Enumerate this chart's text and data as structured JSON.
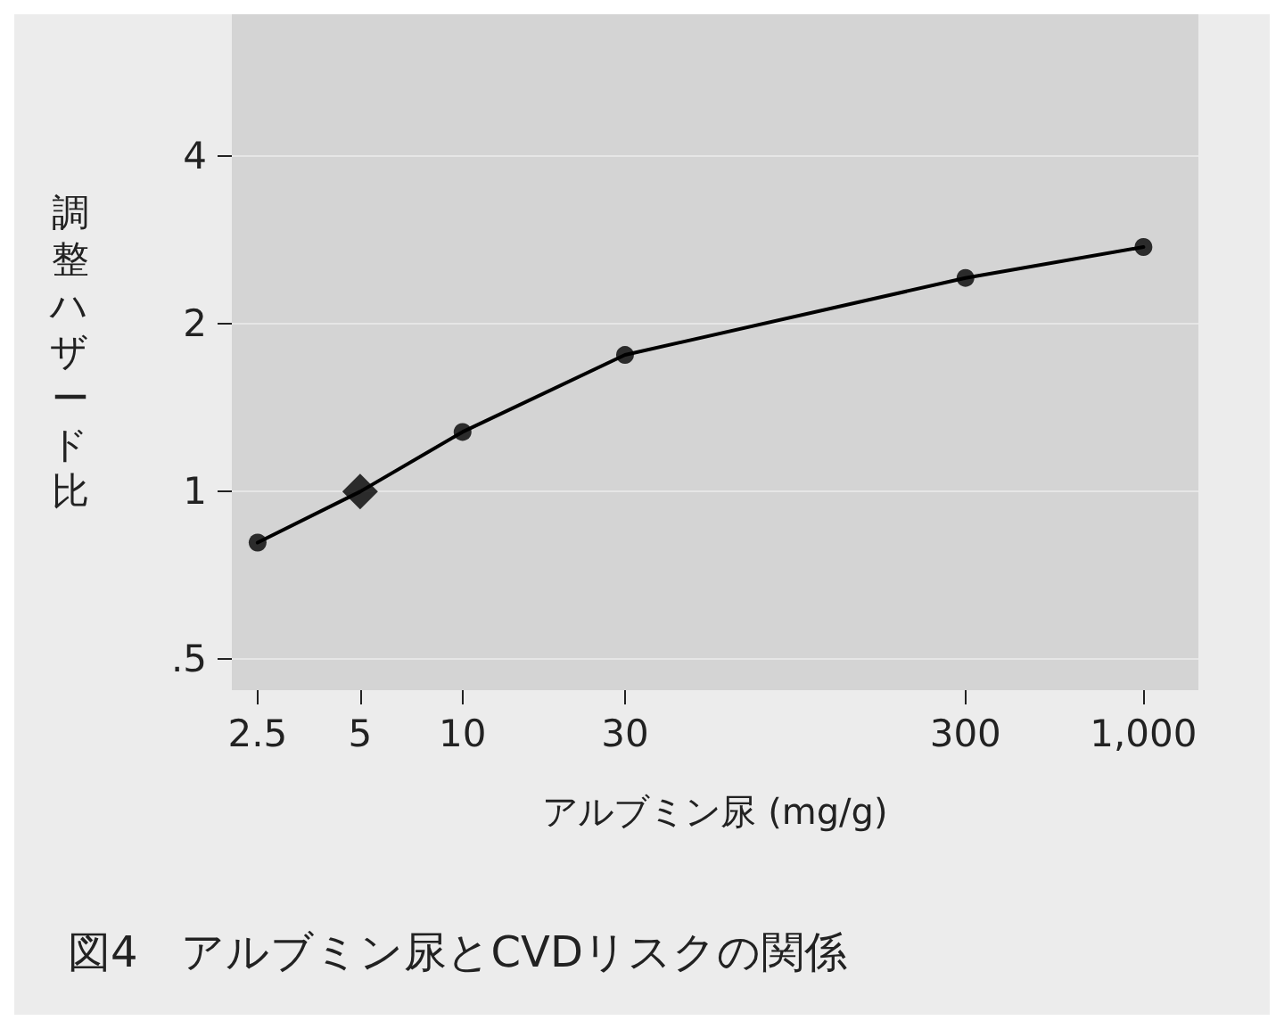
{
  "chart_data": {
    "type": "line",
    "title": "図4　アルブミン尿とCVDリスクの関係",
    "xlabel": "アルブミン尿 (mg/g)",
    "ylabel": "調整ハザード比",
    "log": "xy",
    "xlim": [
      2.1,
      1450
    ],
    "ylim": [
      0.44,
      7.2
    ],
    "xticks": [
      2.5,
      5,
      10,
      30,
      300,
      {
        "value": 1000,
        "label": "1,000"
      }
    ],
    "yticks": [
      {
        "value": 0.5,
        "label": ".5"
      },
      1,
      2,
      4
    ],
    "grid": "y",
    "series": [
      {
        "color": "#000000",
        "marker": "none",
        "x": [
          2.5,
          5,
          10,
          30,
          300,
          1000
        ],
        "values": [
          0.81,
          1.0,
          1.28,
          1.76,
          2.42,
          2.75
        ]
      },
      {
        "type": "scatter",
        "color": "#000000",
        "marker": "circle",
        "x": [
          2.5,
          10,
          30,
          300,
          1000
        ],
        "values": [
          0.81,
          1.28,
          1.76,
          2.42,
          2.75
        ]
      },
      {
        "type": "scatter",
        "color": "#000000",
        "marker": "diamond",
        "x": [
          5
        ],
        "values": [
          1.0
        ]
      }
    ]
  }
}
